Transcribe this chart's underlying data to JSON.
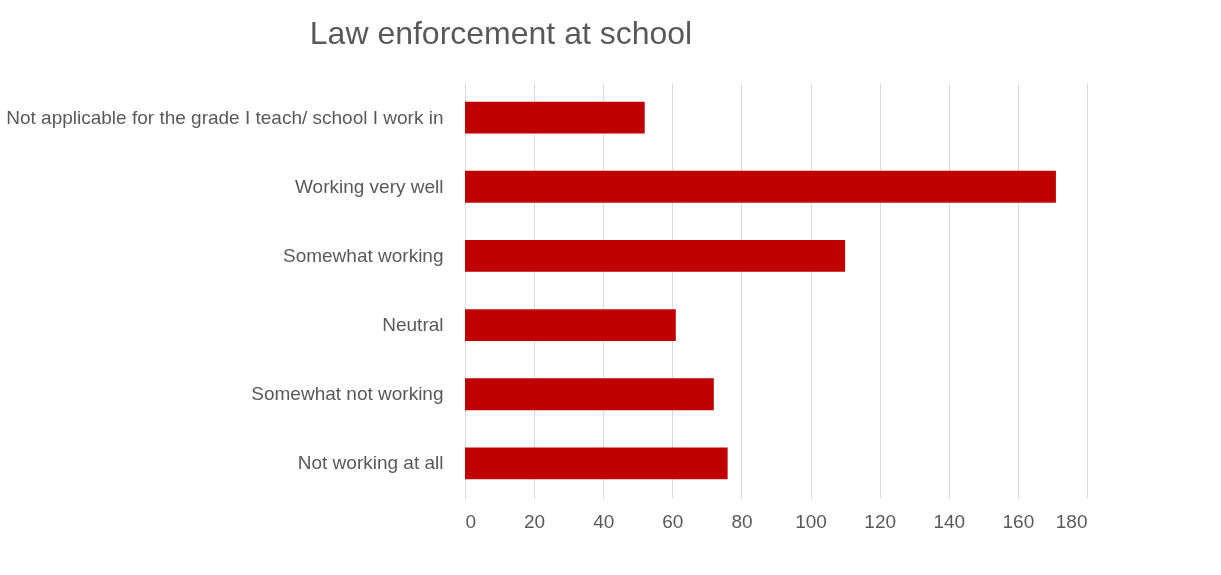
{
  "chart_data": {
    "type": "bar",
    "orientation": "horizontal",
    "title": "Law enforcement at school",
    "categories": [
      "Not applicable for the grade I teach/ school I work in",
      "Working very well",
      "Somewhat working",
      "Neutral",
      "Somewhat not working",
      "Not working at all"
    ],
    "values": [
      52,
      171,
      110,
      61,
      72,
      76
    ],
    "color": "#c00000",
    "xlim": [
      0,
      180
    ],
    "xticks": [
      0,
      20,
      40,
      60,
      80,
      100,
      120,
      140,
      160,
      180
    ],
    "grid": "x"
  }
}
